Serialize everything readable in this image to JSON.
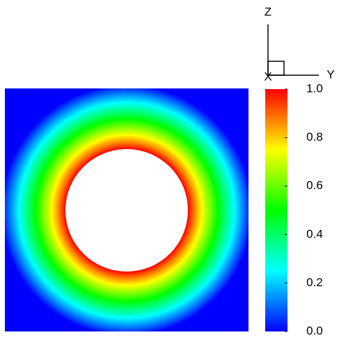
{
  "chart_data": {
    "type": "contour",
    "colormap": [
      "#0000ff",
      "#0080ff",
      "#00ffff",
      "#00ff80",
      "#00ff00",
      "#80ff00",
      "#ffff00",
      "#ff8000",
      "#ff0000"
    ],
    "clim": [
      0,
      1
    ],
    "cticks": [
      {
        "value": 0,
        "label": "0.0"
      },
      {
        "value": 0.2,
        "label": "0.2"
      },
      {
        "value": 0.4,
        "label": "0.4"
      },
      {
        "value": 0.6,
        "label": "0.6"
      },
      {
        "value": 0.8,
        "label": "0.8"
      },
      {
        "value": 1,
        "label": "1.0"
      }
    ],
    "triad_labels": [
      "Z",
      "Y",
      "X"
    ]
  }
}
